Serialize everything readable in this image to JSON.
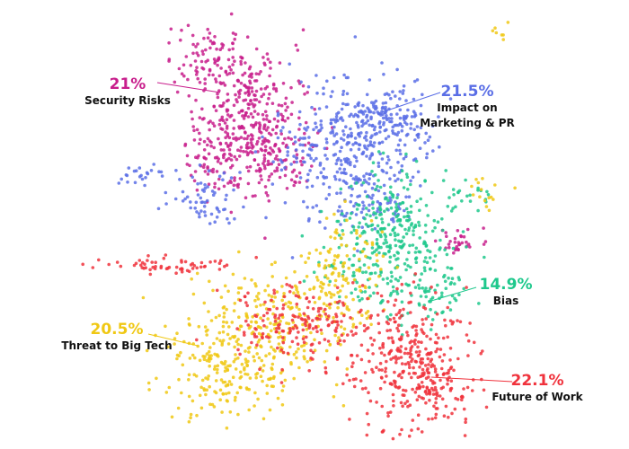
{
  "chart_data": {
    "type": "cluster",
    "categories": [
      "Security Risks",
      "Impact on Marketing & PR",
      "Bias",
      "Threat to Big Tech",
      "Future of Work"
    ],
    "values": [
      21,
      21.5,
      14.9,
      20.5,
      22.1
    ],
    "value_labels": [
      "21%",
      "21.5%",
      "14.9%",
      "20.5%",
      "22.1%"
    ],
    "colors": [
      "#c81e8c",
      "#5a6ee6",
      "#1ec88c",
      "#f0c814",
      "#f0323c"
    ]
  }
}
